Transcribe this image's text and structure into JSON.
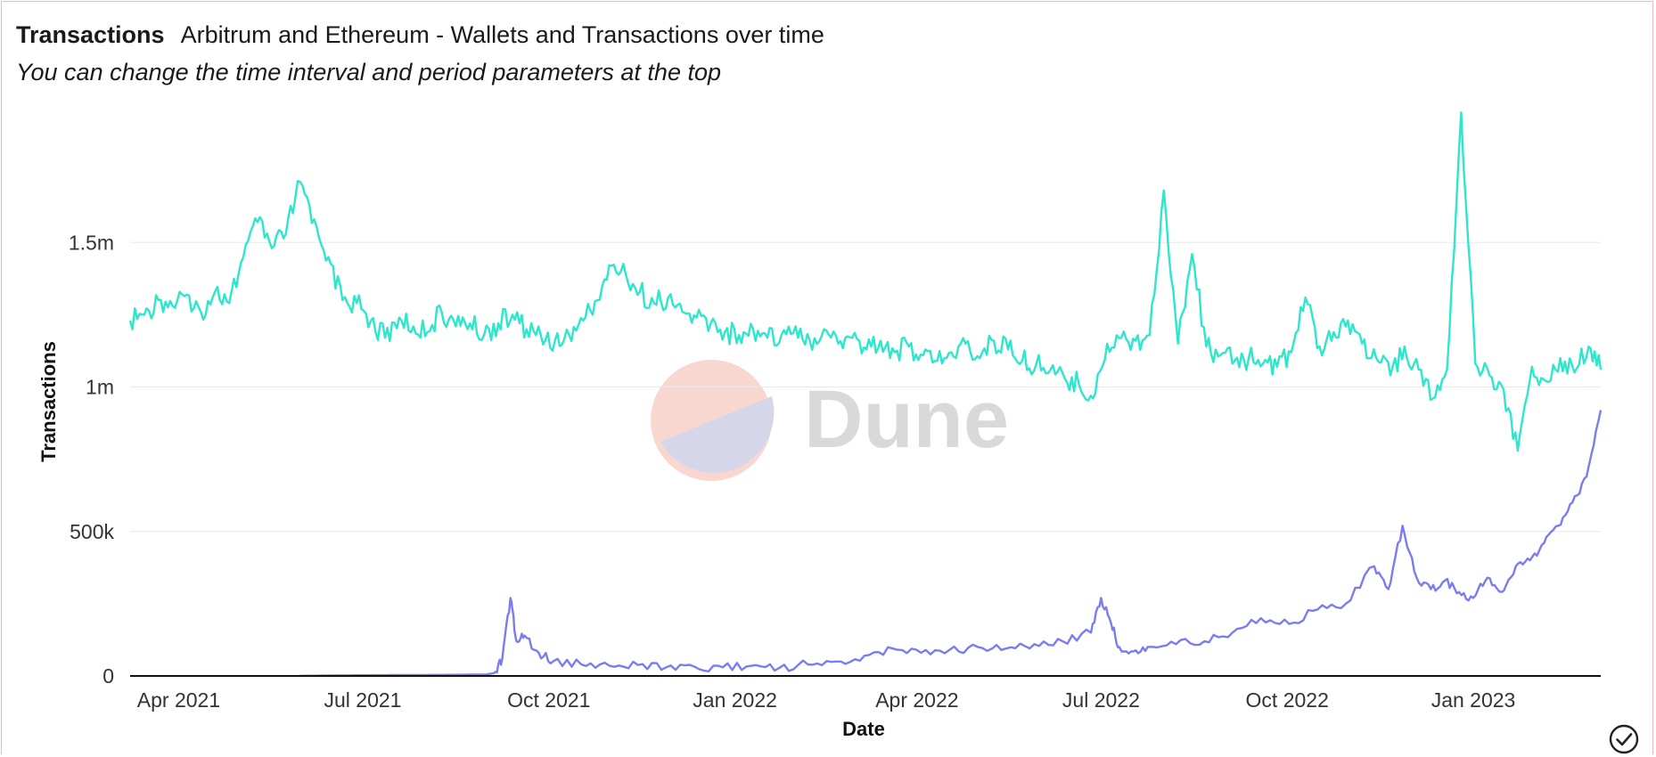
{
  "header": {
    "title": "Transactions",
    "subtitle_inline": "Arbitrum and Ethereum - Wallets and Transactions over time",
    "description": "You can change the time interval and period parameters at the top"
  },
  "watermark": {
    "text": "Dune"
  },
  "colors": {
    "series_ethereum": "#2ee6cc",
    "series_arbitrum": "#7b7cf0",
    "grid": "#e8e8e8",
    "axis": "#111111"
  },
  "status_icon": "check-circle-icon",
  "chart_data": {
    "type": "line",
    "xlabel": "Date",
    "ylabel": "Transactions",
    "x_range": [
      "2021-03-08",
      "2023-03-05"
    ],
    "ylim": [
      0,
      2000000
    ],
    "y_ticks": [
      0,
      500000,
      1000000,
      1500000
    ],
    "y_tick_labels": [
      "0",
      "500k",
      "1m",
      "1.5m"
    ],
    "x_ticks": [
      "2021-04-01",
      "2021-07-01",
      "2021-10-01",
      "2022-01-01",
      "2022-04-01",
      "2022-07-01",
      "2022-10-01",
      "2023-01-01"
    ],
    "x_tick_labels": [
      "Apr 2021",
      "Jul 2021",
      "Oct 2021",
      "Jan 2022",
      "Apr 2022",
      "Jul 2022",
      "Oct 2022",
      "Jan 2023"
    ],
    "grid": "horizontal",
    "legend": "none",
    "series": [
      {
        "color": "#2ee6cc",
        "points": [
          [
            "2021-03-08",
            1230000
          ],
          [
            "2021-03-15",
            1250000
          ],
          [
            "2021-03-22",
            1300000
          ],
          [
            "2021-03-29",
            1280000
          ],
          [
            "2021-04-05",
            1320000
          ],
          [
            "2021-04-12",
            1260000
          ],
          [
            "2021-04-19",
            1330000
          ],
          [
            "2021-04-26",
            1290000
          ],
          [
            "2021-05-03",
            1450000
          ],
          [
            "2021-05-10",
            1570000
          ],
          [
            "2021-05-17",
            1480000
          ],
          [
            "2021-05-24",
            1530000
          ],
          [
            "2021-05-31",
            1710000
          ],
          [
            "2021-06-07",
            1580000
          ],
          [
            "2021-06-14",
            1450000
          ],
          [
            "2021-06-21",
            1300000
          ],
          [
            "2021-06-28",
            1290000
          ],
          [
            "2021-07-05",
            1230000
          ],
          [
            "2021-07-12",
            1170000
          ],
          [
            "2021-07-19",
            1240000
          ],
          [
            "2021-07-26",
            1210000
          ],
          [
            "2021-08-02",
            1190000
          ],
          [
            "2021-08-09",
            1260000
          ],
          [
            "2021-08-16",
            1210000
          ],
          [
            "2021-08-23",
            1220000
          ],
          [
            "2021-08-30",
            1180000
          ],
          [
            "2021-09-06",
            1220000
          ],
          [
            "2021-09-13",
            1250000
          ],
          [
            "2021-09-20",
            1200000
          ],
          [
            "2021-09-27",
            1180000
          ],
          [
            "2021-10-04",
            1160000
          ],
          [
            "2021-10-11",
            1180000
          ],
          [
            "2021-10-18",
            1230000
          ],
          [
            "2021-10-25",
            1300000
          ],
          [
            "2021-11-01",
            1420000
          ],
          [
            "2021-11-08",
            1390000
          ],
          [
            "2021-11-15",
            1330000
          ],
          [
            "2021-11-22",
            1290000
          ],
          [
            "2021-11-29",
            1310000
          ],
          [
            "2021-12-06",
            1260000
          ],
          [
            "2021-12-13",
            1240000
          ],
          [
            "2021-12-20",
            1220000
          ],
          [
            "2021-12-27",
            1190000
          ],
          [
            "2022-01-03",
            1180000
          ],
          [
            "2022-01-10",
            1200000
          ],
          [
            "2022-01-17",
            1170000
          ],
          [
            "2022-01-24",
            1180000
          ],
          [
            "2022-01-31",
            1210000
          ],
          [
            "2022-02-07",
            1160000
          ],
          [
            "2022-02-14",
            1200000
          ],
          [
            "2022-02-21",
            1150000
          ],
          [
            "2022-02-28",
            1170000
          ],
          [
            "2022-03-07",
            1130000
          ],
          [
            "2022-03-14",
            1160000
          ],
          [
            "2022-03-21",
            1120000
          ],
          [
            "2022-03-28",
            1140000
          ],
          [
            "2022-04-04",
            1110000
          ],
          [
            "2022-04-11",
            1090000
          ],
          [
            "2022-04-18",
            1120000
          ],
          [
            "2022-04-25",
            1150000
          ],
          [
            "2022-05-02",
            1100000
          ],
          [
            "2022-05-09",
            1160000
          ],
          [
            "2022-05-16",
            1130000
          ],
          [
            "2022-05-23",
            1090000
          ],
          [
            "2022-05-30",
            1080000
          ],
          [
            "2022-06-06",
            1060000
          ],
          [
            "2022-06-13",
            1030000
          ],
          [
            "2022-06-20",
            1010000
          ],
          [
            "2022-06-27",
            960000
          ],
          [
            "2022-07-04",
            1150000
          ],
          [
            "2022-07-11",
            1170000
          ],
          [
            "2022-07-18",
            1160000
          ],
          [
            "2022-07-25",
            1180000
          ],
          [
            "2022-08-01",
            1680000
          ],
          [
            "2022-08-08",
            1150000
          ],
          [
            "2022-08-15",
            1460000
          ],
          [
            "2022-08-22",
            1140000
          ],
          [
            "2022-08-29",
            1110000
          ],
          [
            "2022-09-05",
            1090000
          ],
          [
            "2022-09-12",
            1100000
          ],
          [
            "2022-09-19",
            1080000
          ],
          [
            "2022-09-26",
            1070000
          ],
          [
            "2022-10-03",
            1120000
          ],
          [
            "2022-10-10",
            1310000
          ],
          [
            "2022-10-17",
            1140000
          ],
          [
            "2022-10-24",
            1190000
          ],
          [
            "2022-10-31",
            1230000
          ],
          [
            "2022-11-07",
            1150000
          ],
          [
            "2022-11-14",
            1100000
          ],
          [
            "2022-11-21",
            1040000
          ],
          [
            "2022-11-28",
            1140000
          ],
          [
            "2022-12-05",
            1060000
          ],
          [
            "2022-12-12",
            960000
          ],
          [
            "2022-12-19",
            1060000
          ],
          [
            "2022-12-26",
            1950000
          ],
          [
            "2023-01-02",
            1080000
          ],
          [
            "2023-01-09",
            1040000
          ],
          [
            "2023-01-16",
            990000
          ],
          [
            "2023-01-23",
            780000
          ],
          [
            "2023-01-30",
            1070000
          ],
          [
            "2023-02-06",
            1020000
          ],
          [
            "2023-02-13",
            1100000
          ],
          [
            "2023-02-20",
            1050000
          ],
          [
            "2023-02-27",
            1140000
          ],
          [
            "2023-03-05",
            1060000
          ]
        ]
      },
      {
        "color": "#7b7cf0",
        "points": [
          [
            "2021-05-31",
            500
          ],
          [
            "2021-06-15",
            1500
          ],
          [
            "2021-07-01",
            2500
          ],
          [
            "2021-07-15",
            3000
          ],
          [
            "2021-08-01",
            3500
          ],
          [
            "2021-08-15",
            4000
          ],
          [
            "2021-08-31",
            5000
          ],
          [
            "2021-09-04",
            10000
          ],
          [
            "2021-09-08",
            60000
          ],
          [
            "2021-09-12",
            270000
          ],
          [
            "2021-09-15",
            120000
          ],
          [
            "2021-09-19",
            140000
          ],
          [
            "2021-09-26",
            80000
          ],
          [
            "2021-10-03",
            50000
          ],
          [
            "2021-10-17",
            40000
          ],
          [
            "2021-10-31",
            35000
          ],
          [
            "2021-11-14",
            38000
          ],
          [
            "2021-11-28",
            30000
          ],
          [
            "2021-12-12",
            32000
          ],
          [
            "2021-12-26",
            30000
          ],
          [
            "2022-01-09",
            35000
          ],
          [
            "2022-01-23",
            28000
          ],
          [
            "2022-02-06",
            40000
          ],
          [
            "2022-02-20",
            50000
          ],
          [
            "2022-03-06",
            70000
          ],
          [
            "2022-03-20",
            95000
          ],
          [
            "2022-04-03",
            80000
          ],
          [
            "2022-04-17",
            90000
          ],
          [
            "2022-05-01",
            100000
          ],
          [
            "2022-05-15",
            95000
          ],
          [
            "2022-05-29",
            110000
          ],
          [
            "2022-06-12",
            120000
          ],
          [
            "2022-06-26",
            150000
          ],
          [
            "2022-07-01",
            270000
          ],
          [
            "2022-07-06",
            180000
          ],
          [
            "2022-07-10",
            100000
          ],
          [
            "2022-07-17",
            85000
          ],
          [
            "2022-07-24",
            100000
          ],
          [
            "2022-08-07",
            110000
          ],
          [
            "2022-08-21",
            120000
          ],
          [
            "2022-09-04",
            150000
          ],
          [
            "2022-09-18",
            200000
          ],
          [
            "2022-10-02",
            180000
          ],
          [
            "2022-10-16",
            230000
          ],
          [
            "2022-10-30",
            250000
          ],
          [
            "2022-11-13",
            380000
          ],
          [
            "2022-11-20",
            300000
          ],
          [
            "2022-11-27",
            520000
          ],
          [
            "2022-12-04",
            340000
          ],
          [
            "2022-12-11",
            300000
          ],
          [
            "2022-12-18",
            330000
          ],
          [
            "2022-12-25",
            290000
          ],
          [
            "2023-01-01",
            270000
          ],
          [
            "2023-01-08",
            340000
          ],
          [
            "2023-01-15",
            290000
          ],
          [
            "2023-01-22",
            380000
          ],
          [
            "2023-01-29",
            400000
          ],
          [
            "2023-02-05",
            460000
          ],
          [
            "2023-02-12",
            520000
          ],
          [
            "2023-02-19",
            600000
          ],
          [
            "2023-02-26",
            690000
          ],
          [
            "2023-03-05",
            920000
          ]
        ]
      }
    ]
  }
}
